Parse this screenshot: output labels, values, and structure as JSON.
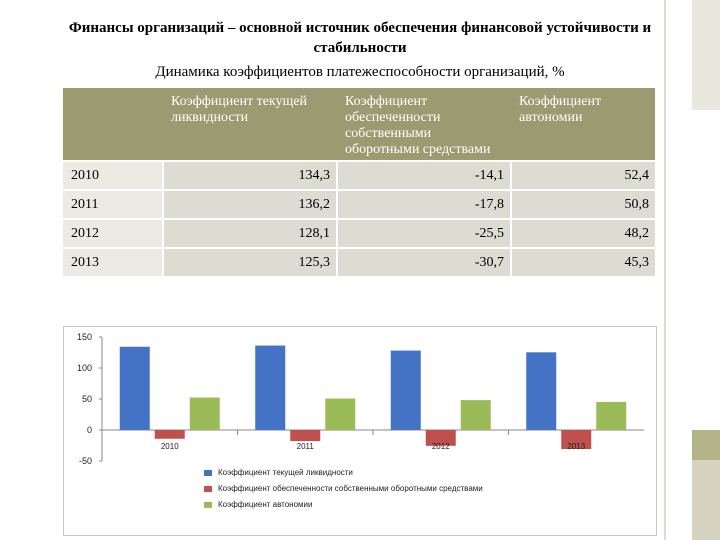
{
  "title": "Финансы организаций – основной источник обеспечения финансовой устойчивости и стабильности",
  "subtitle": "Динамика коэффициентов платежеспособности организаций, %",
  "table": {
    "columns": [
      "",
      "Коэффициент текущей ликвидности",
      "Коэффициент обеспеченности собственными оборотными средствами",
      "Коэффициент автономии"
    ],
    "rows": [
      {
        "year": "2010",
        "v1": "134,3",
        "v2": "-14,1",
        "v3": "52,4"
      },
      {
        "year": "2011",
        "v1": "136,2",
        "v2": "-17,8",
        "v3": "50,8"
      },
      {
        "year": "2012",
        "v1": "128,1",
        "v2": "-25,5",
        "v3": "48,2"
      },
      {
        "year": "2013",
        "v1": "125,3",
        "v2": "-30,7",
        "v3": "45,3"
      }
    ]
  },
  "chart_data": {
    "type": "bar",
    "categories": [
      "2010",
      "2011",
      "2012",
      "2013"
    ],
    "series": [
      {
        "name": "Коэффициент текущей ликвидности",
        "values": [
          134.3,
          136.2,
          128.1,
          125.3
        ],
        "color": "#4472c4"
      },
      {
        "name": "Коэффициент обеспеченности собственными оборотными средствами",
        "values": [
          -14.1,
          -17.8,
          -25.5,
          -30.7
        ],
        "color": "#c0504d"
      },
      {
        "name": "Коэффициент автономии",
        "values": [
          52.4,
          50.8,
          48.2,
          45.3
        ],
        "color": "#9bbb59"
      }
    ],
    "ylim": [
      -50,
      150
    ],
    "yticks": [
      -50,
      0,
      50,
      100,
      150
    ],
    "grid": false,
    "legend_position": "bottom"
  },
  "accent_colors": {
    "table_header": "#9c9a70",
    "table_cell": "#dcdcd2"
  }
}
